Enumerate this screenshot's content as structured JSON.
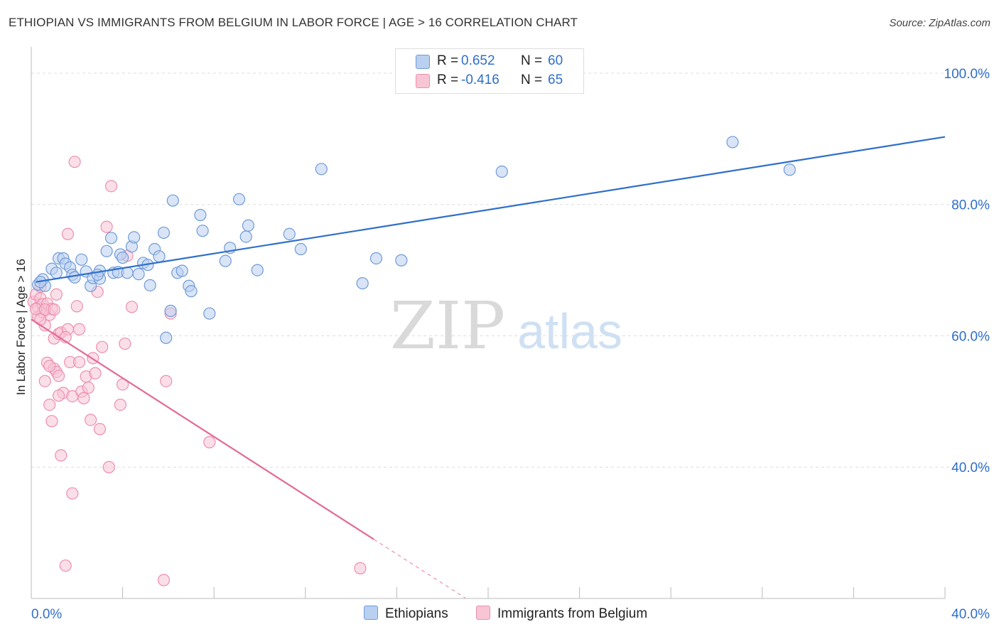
{
  "header": {
    "title": "ETHIOPIAN VS IMMIGRANTS FROM BELGIUM IN LABOR FORCE | AGE > 16 CORRELATION CHART",
    "source": "Source: ZipAtlas.com"
  },
  "watermark": {
    "zip": "ZIP",
    "atlas": "atlas"
  },
  "colors": {
    "blue_fill": "#b9d0f0",
    "blue_stroke": "#6f9ad8",
    "blue_line": "#2f6fca",
    "pink_fill": "#f8c5d5",
    "pink_stroke": "#ec8fae",
    "pink_line": "#e36a96",
    "value_text": "#2f6fca",
    "grid": "#dddddd"
  },
  "legend": {
    "rows": [
      {
        "r_label": "R =",
        "r_value": "0.652",
        "n_label": "N =",
        "n_value": "60"
      },
      {
        "r_label": "R =",
        "r_value": "-0.416",
        "n_label": "N =",
        "n_value": "65"
      }
    ]
  },
  "bottom_legend": {
    "items": [
      "Ethiopians",
      "Immigrants from Belgium"
    ]
  },
  "chart_data": {
    "type": "scatter",
    "title": "ETHIOPIAN VS IMMIGRANTS FROM BELGIUM IN LABOR FORCE | AGE > 16 CORRELATION CHART",
    "xlabel": "",
    "ylabel": "In Labor Force | Age > 16",
    "xlim": [
      0,
      40
    ],
    "ylim": [
      20,
      104
    ],
    "x_tick_labels": [
      {
        "value": 0,
        "label": "0.0%"
      },
      {
        "value": 40,
        "label": "40.0%"
      }
    ],
    "y_tick_labels": [
      {
        "value": 40,
        "label": "40.0%"
      },
      {
        "value": 60,
        "label": "60.0%"
      },
      {
        "value": 80,
        "label": "80.0%"
      },
      {
        "value": 100,
        "label": "100.0%"
      }
    ],
    "series": [
      {
        "name": "Ethiopians",
        "trend": {
          "x": [
            0.2,
            40.0
          ],
          "y": [
            68.2,
            90.3
          ],
          "dashed_from": null
        },
        "points": [
          [
            0.3,
            67.8
          ],
          [
            0.5,
            68.6
          ],
          [
            0.6,
            67.6
          ],
          [
            0.9,
            70.2
          ],
          [
            1.1,
            69.6
          ],
          [
            1.2,
            71.8
          ],
          [
            1.4,
            71.8
          ],
          [
            1.5,
            71.0
          ],
          [
            1.7,
            70.4
          ],
          [
            1.8,
            69.3
          ],
          [
            1.9,
            68.9
          ],
          [
            2.2,
            71.6
          ],
          [
            2.4,
            69.8
          ],
          [
            2.6,
            67.6
          ],
          [
            2.7,
            68.8
          ],
          [
            3.0,
            68.7
          ],
          [
            3.0,
            69.9
          ],
          [
            3.3,
            72.9
          ],
          [
            3.5,
            74.9
          ],
          [
            3.6,
            69.6
          ],
          [
            3.8,
            69.7
          ],
          [
            3.9,
            72.4
          ],
          [
            4.0,
            71.9
          ],
          [
            4.2,
            69.6
          ],
          [
            4.4,
            73.6
          ],
          [
            4.5,
            75.0
          ],
          [
            4.7,
            69.4
          ],
          [
            4.9,
            71.1
          ],
          [
            5.1,
            70.8
          ],
          [
            5.2,
            67.7
          ],
          [
            5.4,
            73.2
          ],
          [
            5.6,
            72.1
          ],
          [
            5.8,
            75.7
          ],
          [
            5.9,
            59.7
          ],
          [
            6.1,
            63.8
          ],
          [
            6.2,
            80.6
          ],
          [
            6.4,
            69.6
          ],
          [
            6.6,
            69.9
          ],
          [
            6.9,
            67.6
          ],
          [
            7.0,
            66.8
          ],
          [
            7.4,
            78.4
          ],
          [
            7.5,
            76.0
          ],
          [
            7.8,
            63.4
          ],
          [
            8.5,
            71.4
          ],
          [
            8.7,
            73.4
          ],
          [
            9.1,
            80.8
          ],
          [
            9.4,
            75.1
          ],
          [
            9.5,
            76.8
          ],
          [
            9.9,
            70.0
          ],
          [
            11.3,
            75.5
          ],
          [
            11.8,
            73.2
          ],
          [
            12.7,
            85.4
          ],
          [
            14.5,
            68.0
          ],
          [
            15.1,
            71.8
          ],
          [
            16.2,
            71.5
          ],
          [
            20.6,
            85.0
          ],
          [
            30.7,
            89.5
          ],
          [
            33.2,
            85.3
          ],
          [
            0.4,
            68.2
          ],
          [
            2.9,
            69.3
          ]
        ]
      },
      {
        "name": "Immigrants from Belgium",
        "trend": {
          "x": [
            0.0,
            15.0
          ],
          "y": [
            62.5,
            29.0
          ],
          "dashed_from": [
            15.0,
            19.0
          ]
        },
        "points": [
          [
            0.1,
            65.2
          ],
          [
            0.2,
            66.3
          ],
          [
            0.3,
            64.3
          ],
          [
            0.3,
            62.9
          ],
          [
            0.4,
            67.5
          ],
          [
            0.4,
            65.7
          ],
          [
            0.5,
            64.8
          ],
          [
            0.5,
            63.6
          ],
          [
            0.6,
            61.6
          ],
          [
            0.6,
            53.1
          ],
          [
            0.7,
            64.9
          ],
          [
            0.7,
            55.9
          ],
          [
            0.8,
            63.2
          ],
          [
            0.8,
            49.5
          ],
          [
            0.9,
            64.1
          ],
          [
            0.9,
            47.0
          ],
          [
            1.0,
            59.6
          ],
          [
            1.0,
            55.0
          ],
          [
            1.1,
            66.3
          ],
          [
            1.1,
            54.5
          ],
          [
            1.2,
            60.3
          ],
          [
            1.2,
            53.9
          ],
          [
            1.3,
            60.5
          ],
          [
            1.3,
            41.8
          ],
          [
            1.4,
            51.3
          ],
          [
            1.5,
            25.0
          ],
          [
            1.6,
            61.0
          ],
          [
            1.6,
            75.5
          ],
          [
            1.7,
            56.0
          ],
          [
            1.8,
            36.0
          ],
          [
            1.8,
            50.8
          ],
          [
            1.9,
            86.5
          ],
          [
            2.0,
            64.5
          ],
          [
            2.1,
            61.0
          ],
          [
            2.2,
            51.5
          ],
          [
            2.3,
            50.5
          ],
          [
            2.4,
            53.8
          ],
          [
            2.5,
            52.1
          ],
          [
            2.6,
            47.2
          ],
          [
            2.7,
            56.6
          ],
          [
            2.8,
            54.3
          ],
          [
            2.9,
            66.7
          ],
          [
            3.0,
            45.8
          ],
          [
            3.1,
            58.3
          ],
          [
            3.3,
            76.6
          ],
          [
            3.4,
            40.0
          ],
          [
            3.5,
            82.8
          ],
          [
            3.9,
            49.5
          ],
          [
            4.0,
            52.6
          ],
          [
            4.1,
            58.8
          ],
          [
            4.2,
            72.2
          ],
          [
            4.4,
            64.4
          ],
          [
            5.9,
            53.1
          ],
          [
            5.8,
            22.8
          ],
          [
            6.1,
            63.4
          ],
          [
            7.8,
            43.8
          ],
          [
            14.4,
            24.6
          ],
          [
            0.2,
            64.1
          ],
          [
            0.6,
            64.0
          ],
          [
            1.0,
            64.0
          ],
          [
            0.4,
            62.5
          ],
          [
            1.5,
            59.8
          ],
          [
            2.1,
            56.0
          ],
          [
            0.8,
            55.4
          ],
          [
            1.2,
            50.9
          ]
        ]
      }
    ]
  }
}
